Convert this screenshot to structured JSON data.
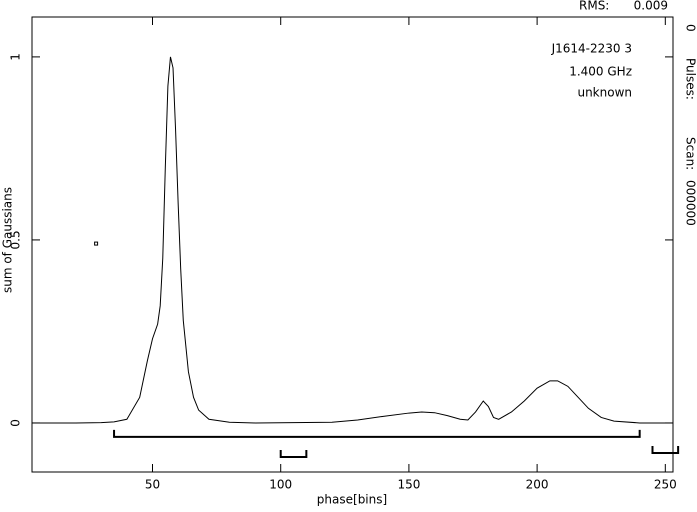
{
  "chart_data": {
    "type": "line",
    "xlabel": "phase[bins]",
    "ylabel": "sum of Gaussians",
    "annotations": [
      "J1614-2230 3",
      "1.400 GHz",
      "unknown"
    ],
    "info": {
      "rms_label": "RMS:",
      "rms_value": 0.009,
      "pulses_label": "Pulses:",
      "pulses_value": 0,
      "scan_label": "Scan:",
      "scan_value": "000000"
    },
    "xlim": [
      3,
      253
    ],
    "ylim": [
      -0.134,
      1.109
    ],
    "xticks": [
      50,
      100,
      150,
      200,
      250
    ],
    "yticks": [
      0,
      0.5,
      1
    ],
    "color": "#000000",
    "x": [
      3,
      20,
      30,
      35,
      40,
      45,
      48,
      50,
      52,
      53,
      54,
      55,
      56,
      57,
      58,
      59,
      60,
      61,
      62,
      64,
      66,
      68,
      72,
      80,
      90,
      120,
      130,
      140,
      150,
      155,
      160,
      165,
      170,
      173,
      176,
      179,
      181,
      183,
      185,
      190,
      195,
      200,
      205,
      208,
      212,
      216,
      220,
      225,
      230,
      240,
      253
    ],
    "values": [
      0,
      0,
      0.001,
      0.003,
      0.01,
      0.07,
      0.17,
      0.23,
      0.27,
      0.32,
      0.45,
      0.7,
      0.92,
      1.0,
      0.97,
      0.8,
      0.6,
      0.42,
      0.28,
      0.14,
      0.07,
      0.035,
      0.01,
      0.002,
      0,
      0.002,
      0.008,
      0.018,
      0.027,
      0.03,
      0.028,
      0.02,
      0.01,
      0.008,
      0.03,
      0.06,
      0.045,
      0.015,
      0.01,
      0.03,
      0.06,
      0.095,
      0.115,
      0.115,
      0.1,
      0.07,
      0.04,
      0.015,
      0.005,
      0,
      0
    ],
    "points": [
      {
        "x": 28,
        "y": 0.49
      }
    ],
    "windows": [
      {
        "start": 35,
        "end": 240,
        "level": -0.038
      },
      {
        "start": 100,
        "end": 110,
        "level": -0.093
      },
      {
        "start": 245,
        "end": 255,
        "level": -0.082
      }
    ]
  }
}
